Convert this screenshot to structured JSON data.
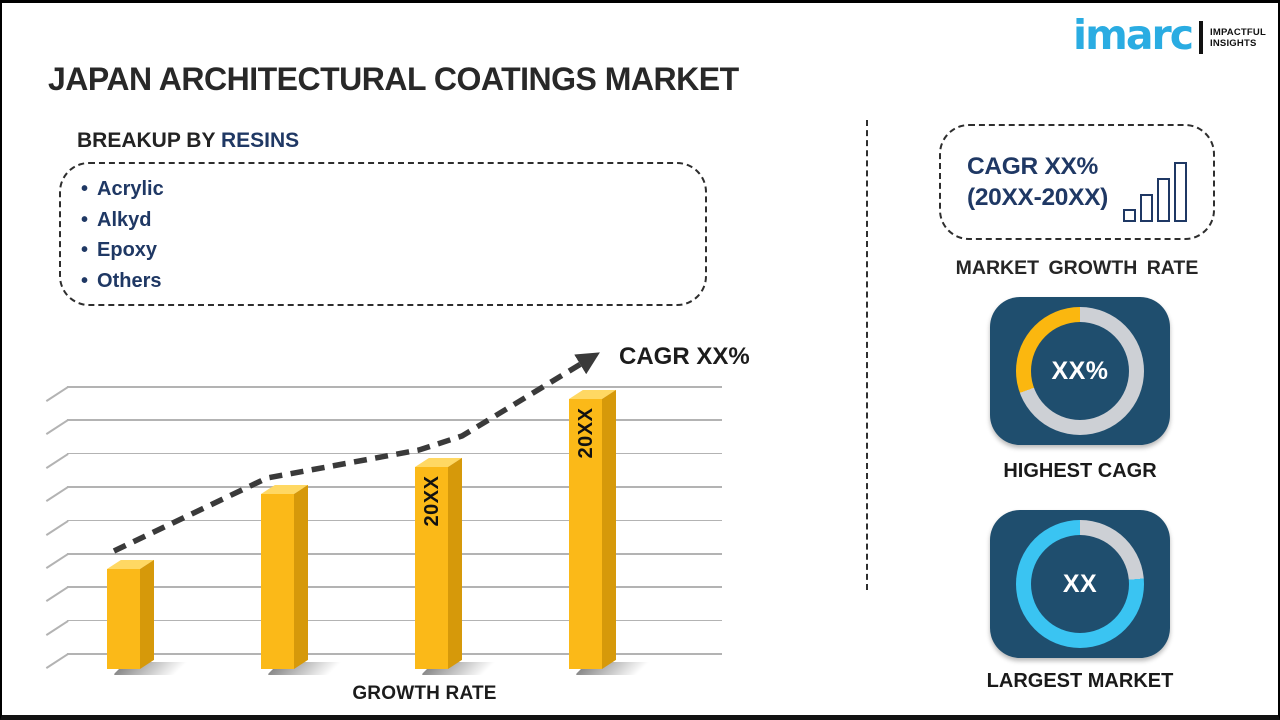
{
  "page": {
    "title": "JAPAN ARCHITECTURAL COATINGS MARKET"
  },
  "logo": {
    "brand": "imarc",
    "tagline_line1": "IMPACTFUL",
    "tagline_line2": "INSIGHTS"
  },
  "icons": {
    "bullet": "•"
  },
  "breakup": {
    "heading_prefix": "BREAKUP BY ",
    "heading_accent": "RESINS",
    "items": [
      "Acrylic",
      "Alkyd",
      "Epoxy",
      "Others"
    ]
  },
  "chart_data": {
    "type": "bar",
    "title": "",
    "xlabel": "GROWTH RATE",
    "trend_label": "CAGR XX%",
    "categories": [
      "",
      "",
      "20XX",
      "20XX"
    ],
    "values": [
      100,
      175,
      202,
      270
    ],
    "value_units": "relative-height-px (no numeric axis shown)",
    "gridline_count": 9,
    "grid": "horizontal lines with 3D ticks, no y tick labels",
    "legend": "none",
    "bar_color": "#FBB918",
    "trend_style": "dashed ascending arrow"
  },
  "sidebar": {
    "cagr_box": {
      "line1": "CAGR XX%",
      "line2": "(20XX-20XX)",
      "icon": "bar-chart-icon",
      "icon_bar_heights": [
        13,
        28,
        44,
        60
      ]
    },
    "market_growth_label": "MARKET GROWTH RATE",
    "highest_cagr": {
      "value": "XX%",
      "label": "HIGHEST CAGR",
      "accent_color": "#FBB70F",
      "track_until_deg": 250
    },
    "largest_market": {
      "value": "XX",
      "label": "LARGEST MARKET",
      "accent_color": "#3AC4F2",
      "track_until_deg": 85
    }
  },
  "colors": {
    "accent_navy": "#1F3864",
    "card_blue": "#1F4E6E",
    "donut_track": "#CDD0D5",
    "logo_cyan": "#2AACE2",
    "bar_yellow": "#FBB918",
    "trend_dark": "#3A3A3A"
  }
}
